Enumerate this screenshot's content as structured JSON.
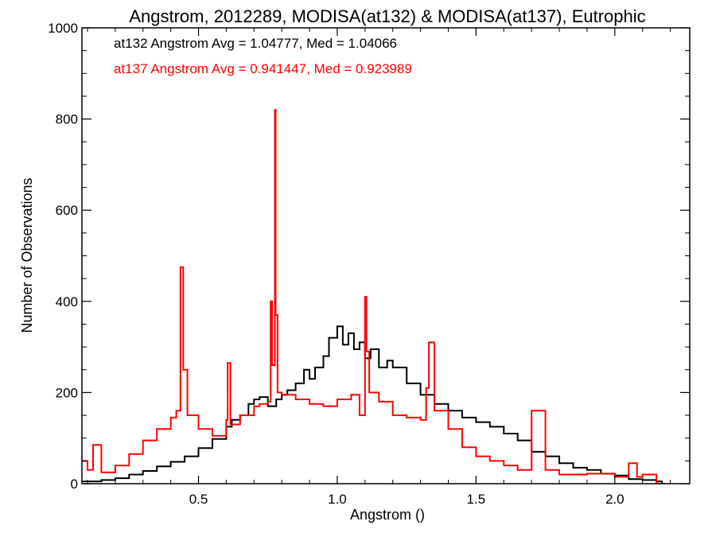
{
  "chart_data": {
    "type": "line",
    "title": "Angstrom, 2012289, MODISA(at132) & MODISA(at137), Eutrophic",
    "xlabel": "Angstrom ()",
    "ylabel": "Number of Observations",
    "xlim": [
      0.08,
      2.27
    ],
    "ylim": [
      0,
      1000
    ],
    "xticks": [
      "0.5",
      "1.0",
      "1.5",
      "2.0"
    ],
    "yticks": [
      "0",
      "200",
      "400",
      "600",
      "800",
      "1000"
    ],
    "grid": false,
    "legend_position": "top-left",
    "annotations": [
      "at132 Angstrom Avg = 1.04777, Med = 1.04066",
      "at137 Angstrom Avg = 0.941447, Med = 0.923989"
    ],
    "series": [
      {
        "color": "#000000",
        "x": [
          0.08,
          0.15,
          0.2,
          0.25,
          0.3,
          0.35,
          0.4,
          0.45,
          0.5,
          0.55,
          0.6,
          0.62,
          0.65,
          0.68,
          0.7,
          0.72,
          0.75,
          0.78,
          0.8,
          0.82,
          0.85,
          0.88,
          0.9,
          0.92,
          0.95,
          0.97,
          1.0,
          1.02,
          1.04,
          1.06,
          1.08,
          1.1,
          1.12,
          1.15,
          1.18,
          1.2,
          1.25,
          1.3,
          1.35,
          1.4,
          1.45,
          1.5,
          1.55,
          1.6,
          1.65,
          1.7,
          1.75,
          1.8,
          1.85,
          1.9,
          1.95,
          2.0,
          2.05,
          2.1,
          2.15,
          2.17
        ],
        "values": [
          5,
          8,
          12,
          20,
          28,
          38,
          48,
          60,
          78,
          98,
          125,
          140,
          150,
          175,
          185,
          190,
          170,
          185,
          195,
          205,
          220,
          250,
          230,
          255,
          280,
          320,
          345,
          305,
          330,
          295,
          310,
          275,
          295,
          255,
          270,
          255,
          220,
          195,
          175,
          160,
          145,
          135,
          125,
          110,
          95,
          70,
          60,
          45,
          35,
          30,
          22,
          18,
          10,
          8,
          5,
          0
        ]
      },
      {
        "color": "#ff0000",
        "x": [
          0.08,
          0.1,
          0.12,
          0.15,
          0.2,
          0.25,
          0.3,
          0.35,
          0.4,
          0.42,
          0.435,
          0.445,
          0.46,
          0.5,
          0.55,
          0.6,
          0.605,
          0.615,
          0.65,
          0.7,
          0.72,
          0.75,
          0.76,
          0.765,
          0.775,
          0.778,
          0.785,
          0.8,
          0.85,
          0.9,
          0.95,
          1.0,
          1.05,
          1.08,
          1.1,
          1.105,
          1.115,
          1.15,
          1.2,
          1.25,
          1.3,
          1.32,
          1.33,
          1.35,
          1.38,
          1.4,
          1.45,
          1.5,
          1.55,
          1.6,
          1.65,
          1.7,
          1.75,
          1.8,
          1.9,
          2.0,
          2.05,
          2.08,
          2.1,
          2.15
        ],
        "values": [
          50,
          30,
          85,
          25,
          40,
          65,
          95,
          120,
          145,
          160,
          475,
          250,
          150,
          120,
          105,
          140,
          265,
          130,
          150,
          170,
          175,
          180,
          400,
          260,
          820,
          370,
          200,
          195,
          185,
          175,
          170,
          185,
          195,
          150,
          410,
          290,
          200,
          180,
          150,
          145,
          140,
          210,
          310,
          160,
          160,
          120,
          80,
          60,
          50,
          40,
          30,
          160,
          30,
          20,
          22,
          15,
          45,
          15,
          20,
          0
        ]
      }
    ]
  }
}
